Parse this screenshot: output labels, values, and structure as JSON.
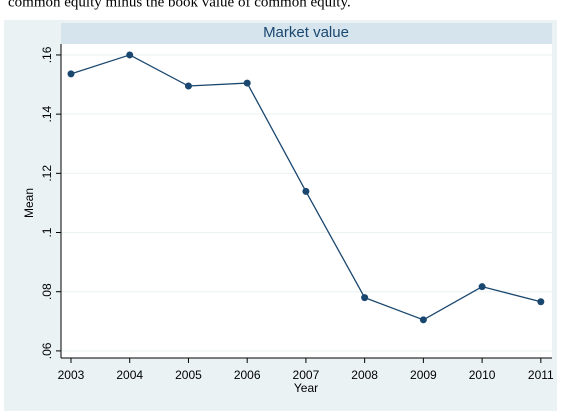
{
  "caption": "common equity minus the book value of common equity.",
  "chart_data": {
    "type": "line",
    "title": "Market value",
    "xlabel": "Year",
    "ylabel": "Mean",
    "x": [
      2003,
      2004,
      2005,
      2006,
      2007,
      2008,
      2009,
      2010,
      2011
    ],
    "series": [
      {
        "name": "Mean",
        "color": "#1a476f",
        "values": [
          0.1536,
          0.16,
          0.1495,
          0.1505,
          0.1139,
          0.078,
          0.0705,
          0.0817,
          0.0766
        ]
      }
    ],
    "markers": true,
    "legend": false,
    "xlim": [
      2002.83,
      2011.19
    ],
    "xticks": [
      2003,
      2004,
      2005,
      2006,
      2007,
      2008,
      2009,
      2010,
      2011
    ],
    "ylim": [
      0.0576,
      0.1637
    ],
    "yticks": [
      {
        "value": 0.06,
        "label": ".06"
      },
      {
        "value": 0.08,
        "label": ".08"
      },
      {
        "value": 0.1,
        "label": ".1"
      },
      {
        "value": 0.12,
        "label": ".12"
      },
      {
        "value": 0.14,
        "label": ".14"
      },
      {
        "value": 0.16,
        "label": ".16"
      }
    ],
    "grid": true
  }
}
